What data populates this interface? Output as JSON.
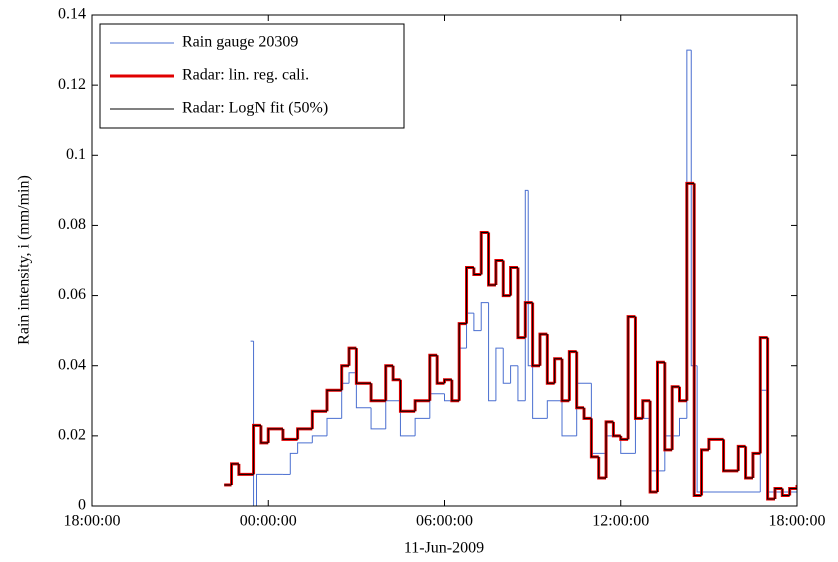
{
  "chart_data": {
    "type": "line",
    "step": true,
    "xlabel": "11-Jun-2009",
    "ylabel": "Rain intensity, i (mm/min)",
    "xlim": [
      -6,
      18
    ],
    "xticks": [
      {
        "value": -6,
        "label": "18:00:00"
      },
      {
        "value": 0,
        "label": "00:00:00"
      },
      {
        "value": 6,
        "label": "06:00:00"
      },
      {
        "value": 12,
        "label": "12:00:00"
      },
      {
        "value": 18,
        "label": "18:00:00"
      }
    ],
    "ylim": [
      0,
      0.14
    ],
    "yticks": [
      0,
      0.02,
      0.04,
      0.06,
      0.08,
      0.1,
      0.12,
      0.14
    ],
    "legend": "upper left",
    "series": [
      {
        "name": "Rain gauge 20309",
        "color": "#4a6fd0",
        "width": 1,
        "x": [
          -0.6,
          -0.5,
          -0.4,
          0.5,
          0.75,
          1.0,
          1.5,
          2.0,
          2.5,
          2.75,
          3.0,
          3.5,
          4.0,
          4.5,
          5.0,
          5.5,
          6.0,
          6.5,
          6.75,
          7.0,
          7.25,
          7.5,
          7.75,
          8.0,
          8.25,
          8.5,
          8.75,
          8.85,
          9.0,
          9.5,
          10.0,
          10.5,
          11.0,
          11.5,
          12.0,
          12.5,
          13.0,
          13.5,
          14.0,
          14.25,
          14.4,
          14.6,
          16.75,
          17.0,
          18.0
        ],
        "values": [
          0.047,
          0.0,
          0.009,
          0.009,
          0.015,
          0.018,
          0.02,
          0.025,
          0.035,
          0.038,
          0.028,
          0.022,
          0.03,
          0.02,
          0.025,
          0.032,
          0.03,
          0.045,
          0.055,
          0.05,
          0.058,
          0.03,
          0.045,
          0.035,
          0.04,
          0.03,
          0.09,
          0.04,
          0.025,
          0.03,
          0.02,
          0.035,
          0.015,
          0.02,
          0.015,
          0.025,
          0.01,
          0.02,
          0.025,
          0.13,
          0.04,
          0.004,
          0.033,
          0.004,
          0.004
        ]
      },
      {
        "name": "Radar: lin. reg. cali.",
        "color": "#e00000",
        "width": 3,
        "x": [
          -1.5,
          -1.25,
          -1.0,
          -0.5,
          -0.25,
          0,
          0.5,
          1.0,
          1.5,
          2.0,
          2.5,
          2.75,
          3.0,
          3.5,
          4.0,
          4.25,
          4.5,
          5.0,
          5.5,
          5.75,
          6.0,
          6.25,
          6.5,
          6.75,
          7.0,
          7.25,
          7.5,
          7.75,
          8.0,
          8.25,
          8.5,
          8.75,
          9.0,
          9.25,
          9.5,
          9.75,
          10.0,
          10.25,
          10.5,
          10.75,
          11.0,
          11.25,
          11.5,
          11.75,
          12.0,
          12.25,
          12.5,
          12.75,
          13.0,
          13.25,
          13.5,
          13.75,
          14.0,
          14.25,
          14.5,
          14.75,
          15.0,
          15.5,
          16.0,
          16.25,
          16.5,
          16.75,
          17.0,
          17.25,
          17.5,
          17.75,
          18.0
        ],
        "values": [
          0.006,
          0.012,
          0.009,
          0.023,
          0.018,
          0.022,
          0.019,
          0.022,
          0.027,
          0.033,
          0.04,
          0.045,
          0.035,
          0.03,
          0.04,
          0.036,
          0.027,
          0.03,
          0.043,
          0.035,
          0.036,
          0.03,
          0.052,
          0.068,
          0.066,
          0.078,
          0.063,
          0.07,
          0.06,
          0.068,
          0.048,
          0.058,
          0.04,
          0.049,
          0.035,
          0.042,
          0.03,
          0.044,
          0.028,
          0.025,
          0.014,
          0.008,
          0.024,
          0.02,
          0.019,
          0.054,
          0.025,
          0.03,
          0.004,
          0.041,
          0.016,
          0.034,
          0.03,
          0.092,
          0.003,
          0.016,
          0.019,
          0.01,
          0.017,
          0.008,
          0.015,
          0.048,
          0.002,
          0.005,
          0.003,
          0.005,
          0.006
        ]
      },
      {
        "name": "Radar: LogN fit (50%)",
        "color": "#000000",
        "width": 1,
        "x": [
          -1.5,
          -1.25,
          -1.0,
          -0.5,
          -0.25,
          0,
          0.5,
          1.0,
          1.5,
          2.0,
          2.5,
          2.75,
          3.0,
          3.5,
          4.0,
          4.25,
          4.5,
          5.0,
          5.5,
          5.75,
          6.0,
          6.25,
          6.5,
          6.75,
          7.0,
          7.25,
          7.5,
          7.75,
          8.0,
          8.25,
          8.5,
          8.75,
          9.0,
          9.25,
          9.5,
          9.75,
          10.0,
          10.25,
          10.5,
          10.75,
          11.0,
          11.25,
          11.5,
          11.75,
          12.0,
          12.25,
          12.5,
          12.75,
          13.0,
          13.25,
          13.5,
          13.75,
          14.0,
          14.25,
          14.5,
          14.75,
          15.0,
          15.5,
          16.0,
          16.25,
          16.5,
          16.75,
          17.0,
          17.25,
          17.5,
          17.75,
          18.0
        ],
        "values": [
          0.006,
          0.012,
          0.009,
          0.023,
          0.018,
          0.022,
          0.019,
          0.022,
          0.027,
          0.033,
          0.04,
          0.045,
          0.035,
          0.03,
          0.04,
          0.036,
          0.027,
          0.03,
          0.043,
          0.035,
          0.036,
          0.03,
          0.052,
          0.068,
          0.066,
          0.078,
          0.063,
          0.07,
          0.06,
          0.068,
          0.048,
          0.058,
          0.04,
          0.049,
          0.035,
          0.042,
          0.03,
          0.044,
          0.028,
          0.025,
          0.014,
          0.008,
          0.024,
          0.02,
          0.019,
          0.054,
          0.025,
          0.03,
          0.004,
          0.041,
          0.016,
          0.034,
          0.03,
          0.092,
          0.003,
          0.016,
          0.019,
          0.01,
          0.017,
          0.008,
          0.015,
          0.048,
          0.002,
          0.005,
          0.003,
          0.005,
          0.006
        ]
      }
    ]
  }
}
